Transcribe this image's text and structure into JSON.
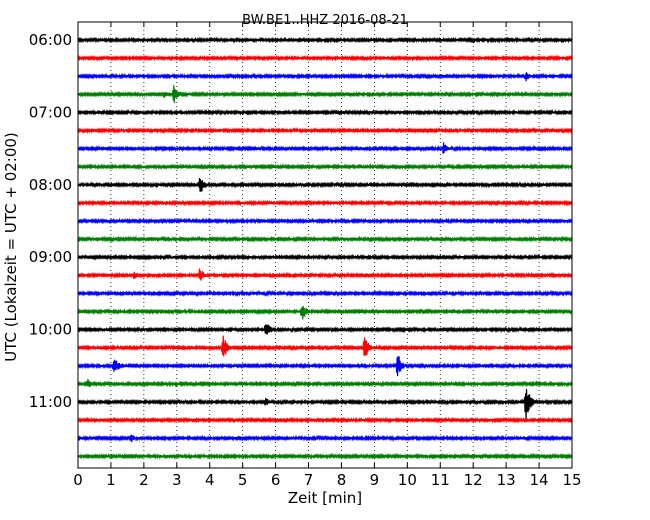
{
  "chart_data": {
    "type": "line",
    "title": "BW.BE1..HHZ 2016-08-21",
    "xlabel": "Zeit  [min]",
    "ylabel": "UTC (Lokalzeit = UTC + 02:00)",
    "xlim": [
      0,
      15
    ],
    "x_ticks": [
      "0",
      "1",
      "2",
      "3",
      "4",
      "5",
      "6",
      "7",
      "8",
      "9",
      "10",
      "11",
      "12",
      "13",
      "14",
      "15"
    ],
    "y_ticks": [
      "06:00",
      "07:00",
      "08:00",
      "09:00",
      "10:00",
      "11:00"
    ],
    "grid": "vertical-dotted",
    "trace_colors": [
      "#000000",
      "#ff0000",
      "#0000ff",
      "#008000"
    ],
    "series": [
      {
        "start": "06:00",
        "color": "#000000",
        "events": []
      },
      {
        "start": "06:15",
        "color": "#ff0000",
        "events": []
      },
      {
        "start": "06:30",
        "color": "#0000ff",
        "events": [
          {
            "t": 13.6,
            "amp": 0.35
          }
        ]
      },
      {
        "start": "06:45",
        "color": "#008000",
        "events": [
          {
            "t": 2.9,
            "amp": 0.6
          },
          {
            "t": 2.6,
            "amp": 0.25
          }
        ]
      },
      {
        "start": "07:00",
        "color": "#000000",
        "events": []
      },
      {
        "start": "07:15",
        "color": "#ff0000",
        "events": []
      },
      {
        "start": "07:30",
        "color": "#0000ff",
        "events": [
          {
            "t": 11.1,
            "amp": 0.4
          }
        ]
      },
      {
        "start": "07:45",
        "color": "#008000",
        "events": []
      },
      {
        "start": "08:00",
        "color": "#000000",
        "events": [
          {
            "t": 3.7,
            "amp": 0.65
          },
          {
            "t": 1.5,
            "amp": 0.1
          }
        ]
      },
      {
        "start": "08:15",
        "color": "#ff0000",
        "events": []
      },
      {
        "start": "08:30",
        "color": "#0000ff",
        "events": []
      },
      {
        "start": "08:45",
        "color": "#008000",
        "events": []
      },
      {
        "start": "09:00",
        "color": "#000000",
        "events": [
          {
            "t": 1.2,
            "amp": 0.1
          },
          {
            "t": 14.5,
            "amp": 0.08
          }
        ]
      },
      {
        "start": "09:15",
        "color": "#ff0000",
        "events": [
          {
            "t": 1.7,
            "amp": 0.3
          },
          {
            "t": 3.7,
            "amp": 0.45
          }
        ]
      },
      {
        "start": "09:30",
        "color": "#0000ff",
        "events": []
      },
      {
        "start": "09:45",
        "color": "#008000",
        "events": [
          {
            "t": 6.8,
            "amp": 0.6
          }
        ]
      },
      {
        "start": "10:00",
        "color": "#000000",
        "events": [
          {
            "t": 5.7,
            "amp": 0.65
          },
          {
            "t": 6.8,
            "amp": 0.12
          }
        ]
      },
      {
        "start": "10:15",
        "color": "#ff0000",
        "events": [
          {
            "t": 4.4,
            "amp": 0.8
          },
          {
            "t": 8.7,
            "amp": 0.8
          }
        ]
      },
      {
        "start": "10:30",
        "color": "#0000ff",
        "events": [
          {
            "t": 1.1,
            "amp": 0.6
          },
          {
            "t": 9.7,
            "amp": 0.8
          }
        ]
      },
      {
        "start": "10:45",
        "color": "#008000",
        "events": [
          {
            "t": 0.3,
            "amp": 0.35
          }
        ]
      },
      {
        "start": "11:00",
        "color": "#000000",
        "events": [
          {
            "t": 5.7,
            "amp": 0.3
          },
          {
            "t": 13.6,
            "amp": 1.2
          }
        ]
      },
      {
        "start": "11:15",
        "color": "#ff0000",
        "events": []
      },
      {
        "start": "11:30",
        "color": "#0000ff",
        "events": [
          {
            "t": 1.6,
            "amp": 0.3
          }
        ]
      },
      {
        "start": "11:45",
        "color": "#008000",
        "events": []
      }
    ]
  }
}
